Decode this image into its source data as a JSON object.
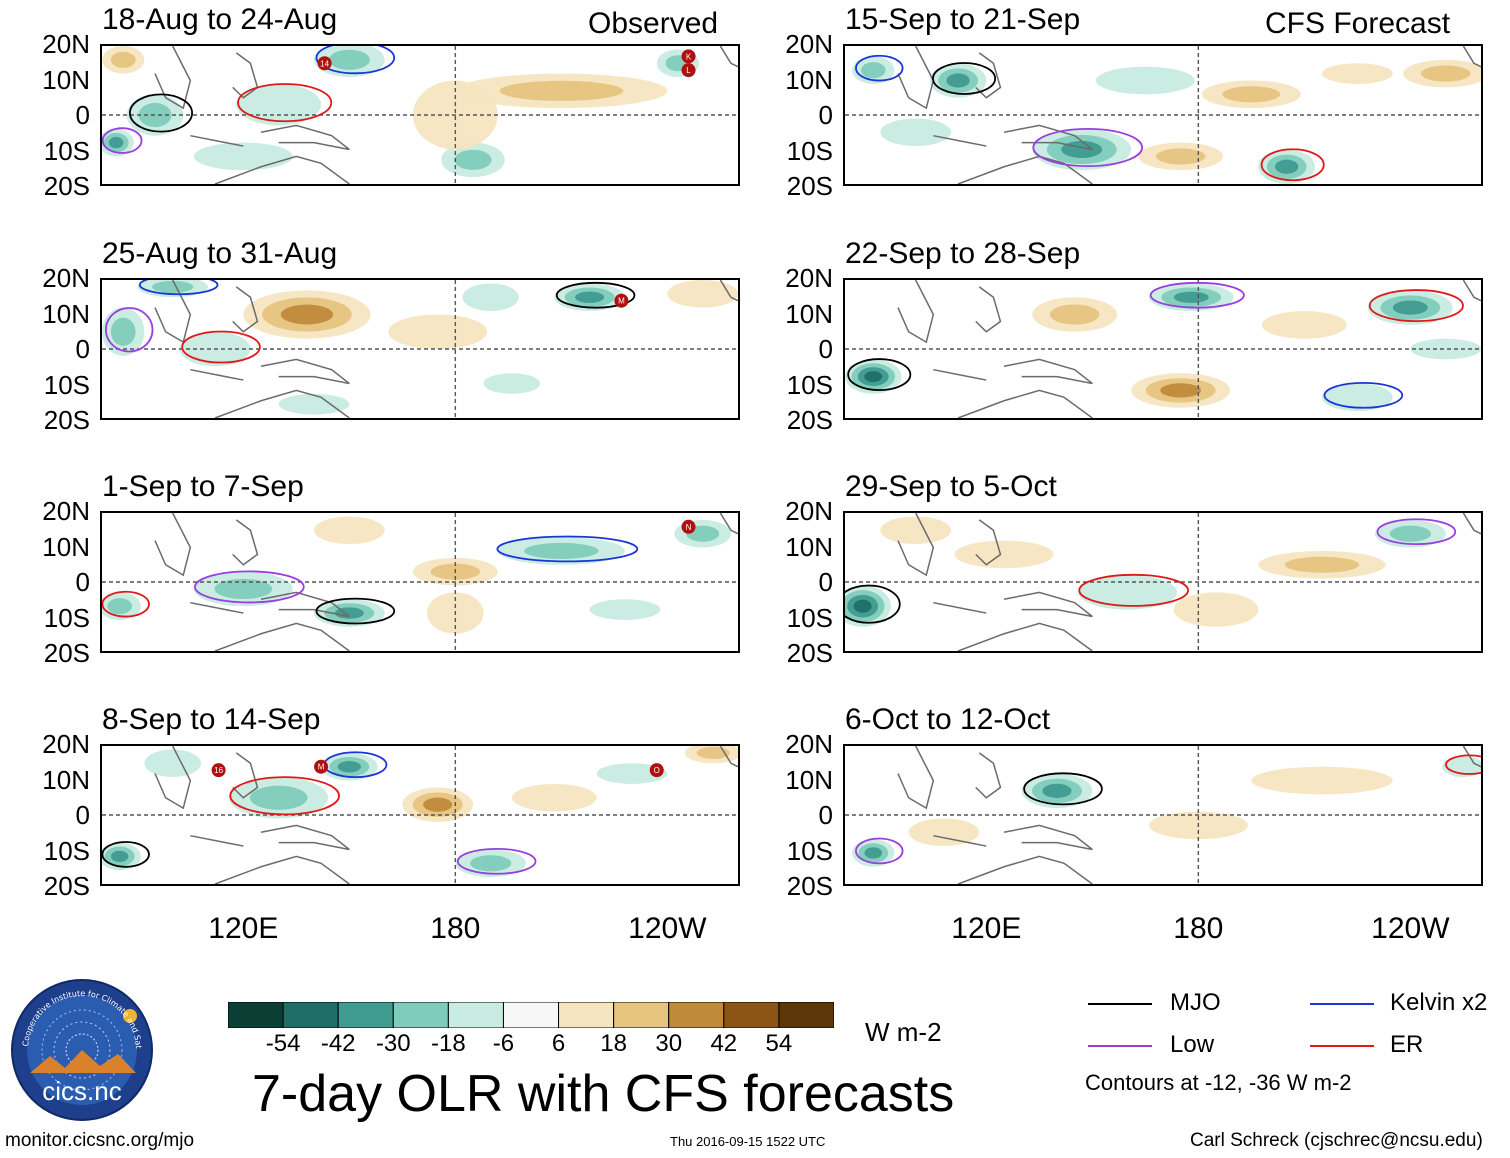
{
  "page": {
    "title": "7-day OLR with CFS forecasts",
    "left_column_label": "Observed",
    "right_column_label": "CFS Forecast",
    "footer_left": "monitor.cicsnc.org/mjo",
    "footer_center": "Thu 2016-09-15 1522 UTC",
    "footer_right": "Carl Schreck (cjschrec@ncsu.edu)",
    "logo_text": "cics.nc",
    "logo_ring_text": "Cooperative Institute for Climate and Satellites"
  },
  "axes": {
    "y_ticks": [
      "20N",
      "10N",
      "0",
      "10S",
      "20S"
    ],
    "x_ticks": [
      "120E",
      "180",
      "120W"
    ],
    "lat_range": [
      -20,
      20
    ],
    "lon_range_deg_east": [
      80,
      260
    ]
  },
  "colorbar": {
    "units": "W m-2",
    "tick_labels": [
      "-54",
      "-42",
      "-30",
      "-18",
      "-6",
      "6",
      "18",
      "30",
      "42",
      "54"
    ],
    "colors": [
      "#0b3f36",
      "#1f6f66",
      "#3f9a8f",
      "#7fccbc",
      "#c8ebe2",
      "#f7f7f7",
      "#f6e5c0",
      "#e6c47f",
      "#c08a3b",
      "#8c5415",
      "#5c3509"
    ]
  },
  "legend": {
    "items": [
      {
        "label": "MJO",
        "color": "#000000"
      },
      {
        "label": "Kelvin x2",
        "color": "#1a35d8"
      },
      {
        "label": "Low",
        "color": "#9a3ee0"
      },
      {
        "label": "ER",
        "color": "#e01818"
      }
    ],
    "note": "Contours at -12, -36 W m-2"
  },
  "chart_data": [
    {
      "type": "heatmap",
      "title": "18-Aug to 24-Aug",
      "column": "Observed",
      "anomalies": [
        {
          "lon": 95,
          "lat": 0,
          "value": -30,
          "rx": 8,
          "ry": 6
        },
        {
          "lon": 84,
          "lat": -8,
          "value": -45,
          "rx": 5,
          "ry": 4
        },
        {
          "lon": 130,
          "lat": 3,
          "value": -20,
          "rx": 12,
          "ry": 6
        },
        {
          "lon": 150,
          "lat": 16,
          "value": -25,
          "rx": 10,
          "ry": 5
        },
        {
          "lon": 120,
          "lat": -12,
          "value": -18,
          "rx": 14,
          "ry": 4
        },
        {
          "lon": 185,
          "lat": -13,
          "value": -35,
          "rx": 9,
          "ry": 5
        },
        {
          "lon": 243,
          "lat": 15,
          "value": -30,
          "rx": 6,
          "ry": 4
        },
        {
          "lon": 210,
          "lat": 7,
          "value": 30,
          "rx": 30,
          "ry": 5
        },
        {
          "lon": 180,
          "lat": 0,
          "value": 12,
          "rx": 12,
          "ry": 10
        },
        {
          "lon": 86,
          "lat": 16,
          "value": 35,
          "rx": 6,
          "ry": 4
        }
      ],
      "storms": [
        {
          "label": "14",
          "lon": 143,
          "lat": 15
        },
        {
          "label": "K",
          "lon": 246,
          "lat": 17
        },
        {
          "label": "L",
          "lon": 246,
          "lat": 13
        }
      ]
    },
    {
      "type": "heatmap",
      "title": "25-Aug to 31-Aug",
      "column": "Observed",
      "anomalies": [
        {
          "lon": 138,
          "lat": 10,
          "value": 40,
          "rx": 18,
          "ry": 7
        },
        {
          "lon": 175,
          "lat": 5,
          "value": 20,
          "rx": 14,
          "ry": 5
        },
        {
          "lon": 218,
          "lat": 15,
          "value": -40,
          "rx": 10,
          "ry": 4
        },
        {
          "lon": 86,
          "lat": 5,
          "value": -30,
          "rx": 6,
          "ry": 7
        },
        {
          "lon": 112,
          "lat": 0,
          "value": -20,
          "rx": 10,
          "ry": 5
        },
        {
          "lon": 100,
          "lat": 18,
          "value": -25,
          "rx": 10,
          "ry": 3
        },
        {
          "lon": 190,
          "lat": 15,
          "value": -18,
          "rx": 8,
          "ry": 4
        },
        {
          "lon": 140,
          "lat": -16,
          "value": -18,
          "rx": 10,
          "ry": 3
        },
        {
          "lon": 196,
          "lat": -10,
          "value": -18,
          "rx": 8,
          "ry": 3
        },
        {
          "lon": 250,
          "lat": 16,
          "value": 18,
          "rx": 10,
          "ry": 4
        }
      ],
      "storms": [
        {
          "label": "M",
          "lon": 227,
          "lat": 14
        }
      ]
    },
    {
      "type": "heatmap",
      "title": "1-Sep to 7-Sep",
      "column": "Observed",
      "anomalies": [
        {
          "lon": 150,
          "lat": -9,
          "value": -40,
          "rx": 10,
          "ry": 4
        },
        {
          "lon": 120,
          "lat": -2,
          "value": -25,
          "rx": 14,
          "ry": 5
        },
        {
          "lon": 85,
          "lat": -7,
          "value": -30,
          "rx": 6,
          "ry": 4
        },
        {
          "lon": 210,
          "lat": 9,
          "value": -25,
          "rx": 18,
          "ry": 4
        },
        {
          "lon": 250,
          "lat": 14,
          "value": -30,
          "rx": 8,
          "ry": 4
        },
        {
          "lon": 180,
          "lat": 3,
          "value": 25,
          "rx": 12,
          "ry": 4
        },
        {
          "lon": 150,
          "lat": 15,
          "value": 18,
          "rx": 10,
          "ry": 4
        },
        {
          "lon": 180,
          "lat": -9,
          "value": 12,
          "rx": 8,
          "ry": 6
        },
        {
          "lon": 228,
          "lat": -8,
          "value": -12,
          "rx": 10,
          "ry": 3
        }
      ],
      "storms": [
        {
          "label": "N",
          "lon": 246,
          "lat": 16
        }
      ]
    },
    {
      "type": "heatmap",
      "title": "8-Sep to 14-Sep",
      "column": "Observed",
      "anomalies": [
        {
          "lon": 85,
          "lat": -12,
          "value": -45,
          "rx": 6,
          "ry": 4
        },
        {
          "lon": 190,
          "lat": -14,
          "value": -35,
          "rx": 10,
          "ry": 4
        },
        {
          "lon": 130,
          "lat": 5,
          "value": -25,
          "rx": 14,
          "ry": 6
        },
        {
          "lon": 150,
          "lat": 14,
          "value": -40,
          "rx": 8,
          "ry": 4
        },
        {
          "lon": 175,
          "lat": 3,
          "value": 40,
          "rx": 10,
          "ry": 5
        },
        {
          "lon": 208,
          "lat": 5,
          "value": 20,
          "rx": 12,
          "ry": 4
        },
        {
          "lon": 253,
          "lat": 18,
          "value": 30,
          "rx": 8,
          "ry": 3
        },
        {
          "lon": 100,
          "lat": 15,
          "value": -18,
          "rx": 8,
          "ry": 4
        },
        {
          "lon": 230,
          "lat": 12,
          "value": -12,
          "rx": 10,
          "ry": 3
        }
      ],
      "storms": [
        {
          "label": "16",
          "lon": 113,
          "lat": 13
        },
        {
          "label": "M",
          "lon": 142,
          "lat": 14
        },
        {
          "label": "O",
          "lon": 237,
          "lat": 13
        }
      ]
    },
    {
      "type": "heatmap",
      "title": "15-Sep to 21-Sep",
      "column": "CFS Forecast",
      "anomalies": [
        {
          "lon": 112,
          "lat": 10,
          "value": -40,
          "rx": 8,
          "ry": 5
        },
        {
          "lon": 147,
          "lat": -10,
          "value": -45,
          "rx": 14,
          "ry": 6
        },
        {
          "lon": 205,
          "lat": -15,
          "value": -45,
          "rx": 8,
          "ry": 5
        },
        {
          "lon": 88,
          "lat": 13,
          "value": -30,
          "rx": 6,
          "ry": 4
        },
        {
          "lon": 165,
          "lat": 10,
          "value": -18,
          "rx": 14,
          "ry": 4
        },
        {
          "lon": 175,
          "lat": -12,
          "value": 35,
          "rx": 12,
          "ry": 4
        },
        {
          "lon": 195,
          "lat": 6,
          "value": 25,
          "rx": 14,
          "ry": 4
        },
        {
          "lon": 250,
          "lat": 12,
          "value": 30,
          "rx": 12,
          "ry": 4
        },
        {
          "lon": 225,
          "lat": 12,
          "value": 18,
          "rx": 10,
          "ry": 3
        },
        {
          "lon": 100,
          "lat": -5,
          "value": -20,
          "rx": 10,
          "ry": 4
        }
      ],
      "storms": []
    },
    {
      "type": "heatmap",
      "title": "22-Sep to 28-Sep",
      "column": "CFS Forecast",
      "anomalies": [
        {
          "lon": 88,
          "lat": -8,
          "value": -48,
          "rx": 8,
          "ry": 5
        },
        {
          "lon": 178,
          "lat": 15,
          "value": -40,
          "rx": 12,
          "ry": 4
        },
        {
          "lon": 240,
          "lat": 12,
          "value": -45,
          "rx": 12,
          "ry": 5
        },
        {
          "lon": 145,
          "lat": 10,
          "value": 35,
          "rx": 12,
          "ry": 5
        },
        {
          "lon": 175,
          "lat": -12,
          "value": 45,
          "rx": 14,
          "ry": 5
        },
        {
          "lon": 210,
          "lat": 7,
          "value": 20,
          "rx": 12,
          "ry": 4
        },
        {
          "lon": 225,
          "lat": -14,
          "value": -18,
          "rx": 10,
          "ry": 4
        },
        {
          "lon": 250,
          "lat": 0,
          "value": -8,
          "rx": 10,
          "ry": 3
        }
      ],
      "storms": []
    },
    {
      "type": "heatmap",
      "title": "29-Sep to 5-Oct",
      "column": "CFS Forecast",
      "anomalies": [
        {
          "lon": 85,
          "lat": -7,
          "value": -55,
          "rx": 8,
          "ry": 6
        },
        {
          "lon": 215,
          "lat": 5,
          "value": 25,
          "rx": 18,
          "ry": 4
        },
        {
          "lon": 240,
          "lat": 14,
          "value": -35,
          "rx": 10,
          "ry": 4
        },
        {
          "lon": 125,
          "lat": 8,
          "value": 18,
          "rx": 14,
          "ry": 4
        },
        {
          "lon": 160,
          "lat": -3,
          "value": -18,
          "rx": 14,
          "ry": 5
        },
        {
          "lon": 185,
          "lat": -8,
          "value": 18,
          "rx": 12,
          "ry": 5
        },
        {
          "lon": 100,
          "lat": 15,
          "value": 8,
          "rx": 10,
          "ry": 4
        }
      ],
      "storms": []
    },
    {
      "type": "heatmap",
      "title": "6-Oct to 12-Oct",
      "column": "CFS Forecast",
      "anomalies": [
        {
          "lon": 140,
          "lat": 7,
          "value": -45,
          "rx": 10,
          "ry": 5
        },
        {
          "lon": 88,
          "lat": -11,
          "value": -40,
          "rx": 6,
          "ry": 4
        },
        {
          "lon": 215,
          "lat": 10,
          "value": 18,
          "rx": 20,
          "ry": 4
        },
        {
          "lon": 180,
          "lat": -3,
          "value": 18,
          "rx": 14,
          "ry": 4
        },
        {
          "lon": 255,
          "lat": 14,
          "value": -18,
          "rx": 6,
          "ry": 3
        },
        {
          "lon": 108,
          "lat": -5,
          "value": 8,
          "rx": 10,
          "ry": 4
        }
      ],
      "storms": []
    }
  ]
}
